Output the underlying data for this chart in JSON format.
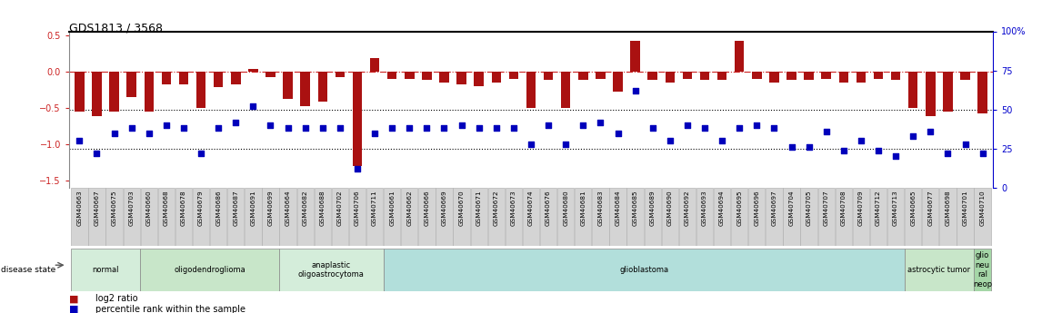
{
  "title": "GDS1813 / 3568",
  "samples": [
    "GSM40663",
    "GSM40667",
    "GSM40675",
    "GSM40703",
    "GSM40660",
    "GSM40668",
    "GSM40678",
    "GSM40679",
    "GSM40686",
    "GSM40687",
    "GSM40691",
    "GSM40699",
    "GSM40664",
    "GSM40682",
    "GSM40688",
    "GSM40702",
    "GSM40706",
    "GSM40711",
    "GSM40661",
    "GSM40662",
    "GSM40666",
    "GSM40669",
    "GSM40670",
    "GSM40671",
    "GSM40672",
    "GSM40673",
    "GSM40674",
    "GSM40676",
    "GSM40680",
    "GSM40681",
    "GSM40683",
    "GSM40684",
    "GSM40685",
    "GSM40689",
    "GSM40690",
    "GSM40692",
    "GSM40693",
    "GSM40694",
    "GSM40695",
    "GSM40696",
    "GSM40697",
    "GSM40704",
    "GSM40705",
    "GSM40707",
    "GSM40708",
    "GSM40709",
    "GSM40712",
    "GSM40713",
    "GSM40665",
    "GSM40677",
    "GSM40698",
    "GSM40701",
    "GSM40710"
  ],
  "log2_ratio": [
    -0.55,
    -0.62,
    -0.55,
    -0.35,
    -0.55,
    -0.18,
    -0.18,
    -0.5,
    -0.22,
    -0.18,
    0.03,
    -0.08,
    -0.38,
    -0.48,
    -0.42,
    -0.08,
    -1.3,
    0.18,
    -0.1,
    -0.1,
    -0.12,
    -0.15,
    -0.18,
    -0.2,
    -0.15,
    -0.1,
    -0.5,
    -0.12,
    -0.5,
    -0.12,
    -0.1,
    -0.28,
    0.42,
    -0.12,
    -0.15,
    -0.1,
    -0.12,
    -0.12,
    0.42,
    -0.1,
    -0.15,
    -0.12,
    -0.12,
    -0.1,
    -0.15,
    -0.15,
    -0.1,
    -0.12,
    -0.5,
    -0.62,
    -0.55,
    -0.12,
    -0.58
  ],
  "percentile": [
    30,
    22,
    35,
    38,
    35,
    40,
    38,
    22,
    38,
    42,
    52,
    40,
    38,
    38,
    38,
    38,
    12,
    35,
    38,
    38,
    38,
    38,
    40,
    38,
    38,
    38,
    28,
    40,
    28,
    40,
    42,
    35,
    62,
    38,
    30,
    40,
    38,
    30,
    38,
    40,
    38,
    26,
    26,
    36,
    24,
    30,
    24,
    20,
    33,
    36,
    22,
    28,
    22
  ],
  "groups": [
    {
      "label": "normal",
      "start": 0,
      "end": 4,
      "color": "#d4edda"
    },
    {
      "label": "oligodendroglioma",
      "start": 4,
      "end": 12,
      "color": "#c8e6c9"
    },
    {
      "label": "anaplastic\noligoastrocytoma",
      "start": 12,
      "end": 18,
      "color": "#d4edda"
    },
    {
      "label": "glioblastoma",
      "start": 18,
      "end": 48,
      "color": "#b2dfdb"
    },
    {
      "label": "astrocytic tumor",
      "start": 48,
      "end": 52,
      "color": "#c8e6c9"
    },
    {
      "label": "glio\nneu\nral\nneop",
      "start": 52,
      "end": 53,
      "color": "#a5d6a7"
    }
  ],
  "ylim_left": [
    -1.6,
    0.55
  ],
  "ylim_right": [
    0,
    100
  ],
  "bar_color": "#aa1111",
  "dot_color": "#0000bb",
  "background_color": "#ffffff",
  "label_bg_color": "#cccccc",
  "label_border_color": "#999999"
}
